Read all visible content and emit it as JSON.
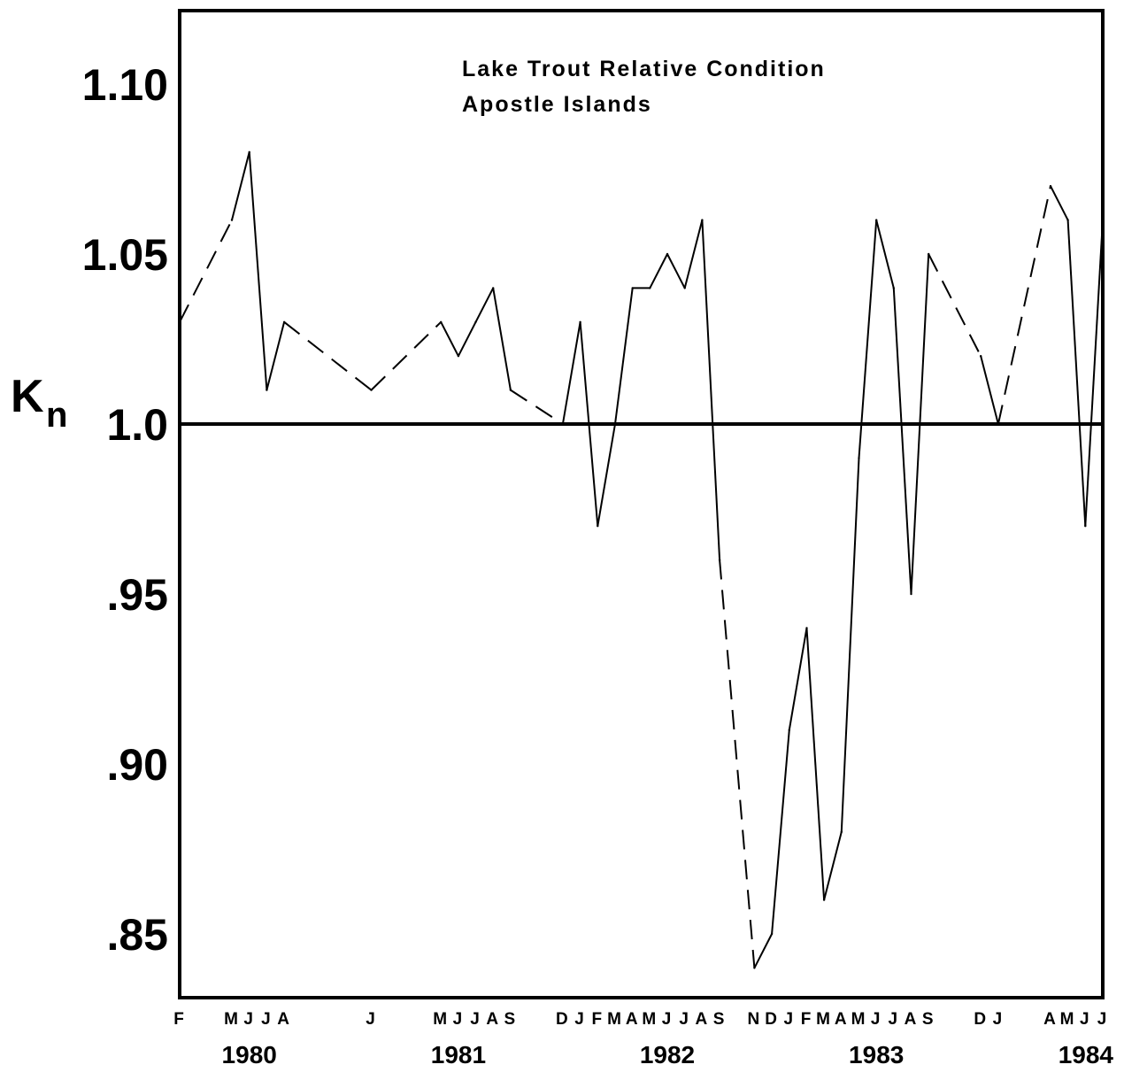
{
  "chart_data": {
    "type": "line",
    "title": "Lake Trout  Relative Condition",
    "subtitle": "Apostle Islands",
    "ylabel": "K",
    "ylabel_subscript": "n",
    "xlabel": "",
    "ylim": [
      0.83,
      1.11
    ],
    "yticks": [
      {
        "value": 1.1,
        "label": "1.10"
      },
      {
        "value": 1.05,
        "label": "1.05"
      },
      {
        "value": 1.0,
        "label": "1.0"
      },
      {
        "value": 0.95,
        "label": ".95"
      },
      {
        "value": 0.9,
        "label": ".90"
      },
      {
        "value": 0.85,
        "label": ".85"
      }
    ],
    "x_range": [
      "1980-02",
      "1984-07"
    ],
    "grid": false,
    "reference_line": {
      "value": 1.0,
      "style": "solid-bold"
    },
    "x_month_labels": [
      {
        "x": "1980-02",
        "label": "F"
      },
      {
        "x": "1980-05",
        "label": "M"
      },
      {
        "x": "1980-06",
        "label": "J"
      },
      {
        "x": "1980-07",
        "label": "J"
      },
      {
        "x": "1980-08",
        "label": "A"
      },
      {
        "x": "1981-01",
        "label": "J"
      },
      {
        "x": "1981-05",
        "label": "M"
      },
      {
        "x": "1981-06",
        "label": "J"
      },
      {
        "x": "1981-07",
        "label": "J"
      },
      {
        "x": "1981-08",
        "label": "A"
      },
      {
        "x": "1981-09",
        "label": "S"
      },
      {
        "x": "1981-12",
        "label": "D"
      },
      {
        "x": "1982-01",
        "label": "J"
      },
      {
        "x": "1982-02",
        "label": "F"
      },
      {
        "x": "1982-03",
        "label": "M"
      },
      {
        "x": "1982-04",
        "label": "A"
      },
      {
        "x": "1982-05",
        "label": "M"
      },
      {
        "x": "1982-06",
        "label": "J"
      },
      {
        "x": "1982-07",
        "label": "J"
      },
      {
        "x": "1982-08",
        "label": "A"
      },
      {
        "x": "1982-09",
        "label": "S"
      },
      {
        "x": "1982-11",
        "label": "N"
      },
      {
        "x": "1982-12",
        "label": "D"
      },
      {
        "x": "1983-01",
        "label": "J"
      },
      {
        "x": "1983-02",
        "label": "F"
      },
      {
        "x": "1983-03",
        "label": "M"
      },
      {
        "x": "1983-04",
        "label": "A"
      },
      {
        "x": "1983-05",
        "label": "M"
      },
      {
        "x": "1983-06",
        "label": "J"
      },
      {
        "x": "1983-07",
        "label": "J"
      },
      {
        "x": "1983-08",
        "label": "A"
      },
      {
        "x": "1983-09",
        "label": "S"
      },
      {
        "x": "1983-12",
        "label": "D"
      },
      {
        "x": "1984-01",
        "label": "J"
      },
      {
        "x": "1984-04",
        "label": "A"
      },
      {
        "x": "1984-05",
        "label": "M"
      },
      {
        "x": "1984-06",
        "label": "J"
      },
      {
        "x": "1984-07",
        "label": "J"
      }
    ],
    "x_year_labels": [
      {
        "x": "1980-06",
        "label": "1980"
      },
      {
        "x": "1981-06",
        "label": "1981"
      },
      {
        "x": "1982-06",
        "label": "1982"
      },
      {
        "x": "1983-06",
        "label": "1983"
      },
      {
        "x": "1984-07",
        "label": "1984"
      }
    ],
    "series": [
      {
        "points": [
          {
            "x": "1980-02",
            "y": 1.03
          },
          {
            "x": "1980-05",
            "y": 1.06
          },
          {
            "x": "1980-06",
            "y": 1.08
          },
          {
            "x": "1980-07",
            "y": 1.01
          },
          {
            "x": "1980-08",
            "y": 1.03
          },
          {
            "x": "1981-01",
            "y": 1.01
          },
          {
            "x": "1981-05",
            "y": 1.03
          },
          {
            "x": "1981-06",
            "y": 1.02
          },
          {
            "x": "1981-07",
            "y": 1.03
          },
          {
            "x": "1981-08",
            "y": 1.04
          },
          {
            "x": "1981-09",
            "y": 1.01
          },
          {
            "x": "1981-12",
            "y": 1.0
          },
          {
            "x": "1982-01",
            "y": 1.03
          },
          {
            "x": "1982-02",
            "y": 0.97
          },
          {
            "x": "1982-03",
            "y": 1.0
          },
          {
            "x": "1982-04",
            "y": 1.04
          },
          {
            "x": "1982-05",
            "y": 1.04
          },
          {
            "x": "1982-06",
            "y": 1.05
          },
          {
            "x": "1982-07",
            "y": 1.04
          },
          {
            "x": "1982-08",
            "y": 1.06
          },
          {
            "x": "1982-09",
            "y": 0.96
          },
          {
            "x": "1982-11",
            "y": 0.84
          },
          {
            "x": "1982-12",
            "y": 0.85
          },
          {
            "x": "1983-01",
            "y": 0.91
          },
          {
            "x": "1983-02",
            "y": 0.94
          },
          {
            "x": "1983-03",
            "y": 0.86
          },
          {
            "x": "1983-04",
            "y": 0.88
          },
          {
            "x": "1983-05",
            "y": 0.99
          },
          {
            "x": "1983-06",
            "y": 1.06
          },
          {
            "x": "1983-07",
            "y": 1.04
          },
          {
            "x": "1983-08",
            "y": 0.95
          },
          {
            "x": "1983-09",
            "y": 1.05
          },
          {
            "x": "1983-12",
            "y": 1.02
          },
          {
            "x": "1984-01",
            "y": 1.0
          },
          {
            "x": "1984-04",
            "y": 1.07
          },
          {
            "x": "1984-05",
            "y": 1.06
          },
          {
            "x": "1984-06",
            "y": 0.97
          },
          {
            "x": "1984-07",
            "y": 1.06
          }
        ],
        "segment_styles": [
          "dashed",
          "solid",
          "solid",
          "solid",
          "dashed",
          "dashed",
          "solid",
          "solid",
          "solid",
          "solid",
          "dashed",
          "solid",
          "solid",
          "solid",
          "solid",
          "solid",
          "solid",
          "solid",
          "solid",
          "solid",
          "dashed",
          "solid",
          "solid",
          "solid",
          "solid",
          "solid",
          "solid",
          "solid",
          "solid",
          "solid",
          "solid",
          "dashed",
          "solid",
          "dashed",
          "solid",
          "solid",
          "solid"
        ]
      }
    ]
  }
}
